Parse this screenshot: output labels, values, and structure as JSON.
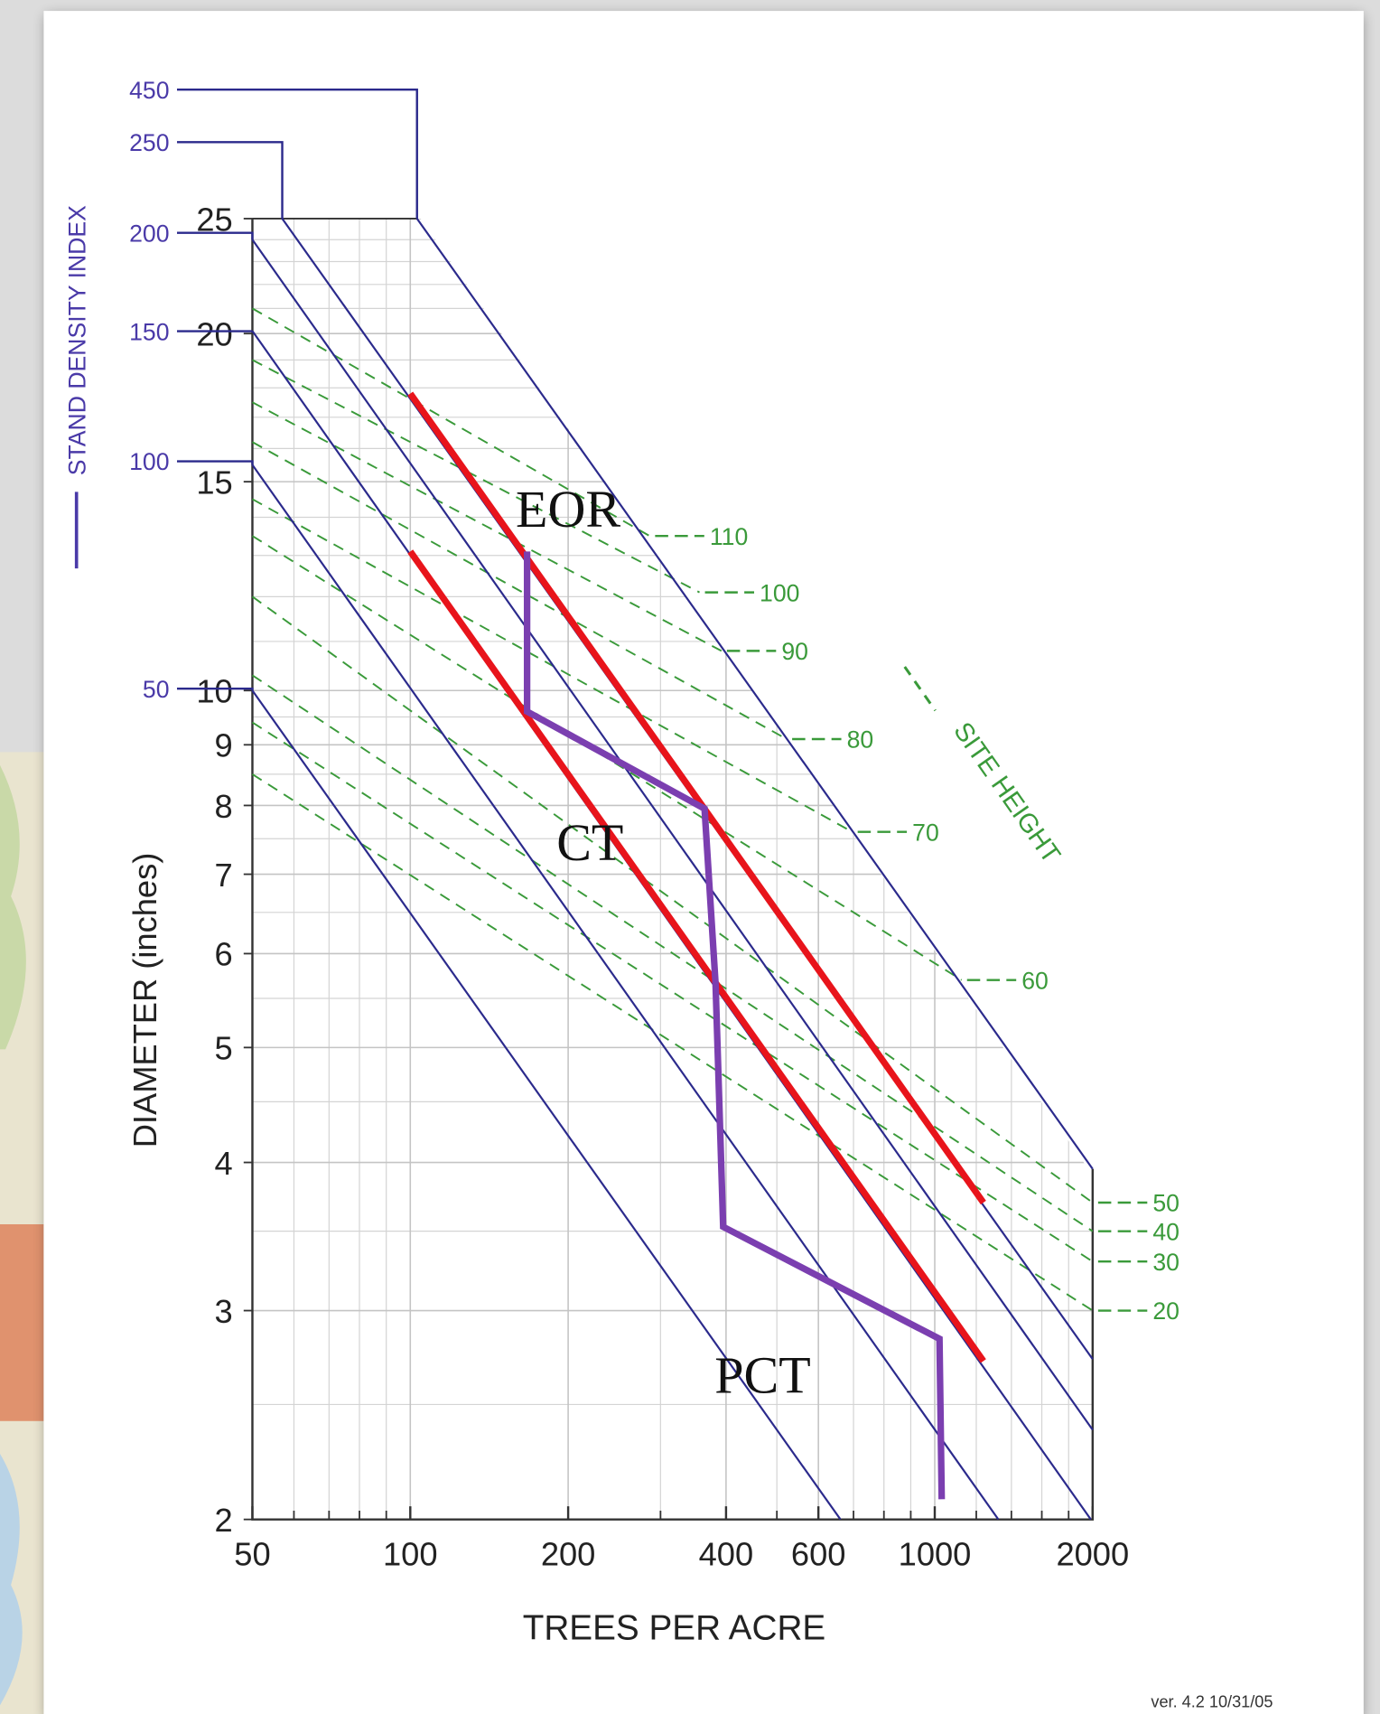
{
  "chart_data": {
    "type": "line",
    "x_label": "TREES PER ACRE",
    "y_label": "DIAMETER (inches)",
    "sdi_label": "STAND DENSITY INDEX",
    "site_label": "SITE HEIGHT",
    "version": "ver. 4.2  10/31/05",
    "log_x": true,
    "log_y": true,
    "grid": true,
    "xlim": [
      50,
      2000
    ],
    "ylim": [
      2,
      25
    ],
    "xticks": [
      50,
      100,
      200,
      400,
      600,
      1000,
      2000
    ],
    "yticks": [
      2,
      3,
      4,
      5,
      6,
      7,
      8,
      9,
      10,
      15,
      20,
      25
    ],
    "xgrid": [
      60,
      70,
      80,
      90,
      300,
      500,
      700,
      800,
      900,
      1200,
      1400,
      1600,
      1800
    ],
    "ygrid": [
      2.5,
      3.5,
      4.5,
      5.5,
      6.5,
      7.5,
      8.5,
      9.5,
      11,
      12,
      13,
      14,
      16,
      17,
      18,
      19,
      21,
      22,
      23,
      24
    ],
    "series": [
      {
        "name": "450",
        "color": "#2b2a8c",
        "x": [
          103,
          2000
        ],
        "values": [
          25,
          3.95
        ]
      },
      {
        "name": "250",
        "color": "#2b2a8c",
        "x": [
          57,
          2000
        ],
        "values": [
          25,
          2.73
        ]
      },
      {
        "name": "200",
        "color": "#2b2a8c",
        "x": [
          50,
          2000
        ],
        "values": [
          24,
          2.38
        ]
      },
      {
        "name": "150",
        "color": "#2b2a8c",
        "x": [
          50,
          1984
        ],
        "values": [
          20.1,
          2
        ]
      },
      {
        "name": "100",
        "color": "#2b2a8c",
        "x": [
          50,
          1322
        ],
        "values": [
          15.5,
          2
        ]
      },
      {
        "name": "50",
        "color": "#2b2a8c",
        "x": [
          50,
          661
        ],
        "values": [
          10,
          2
        ]
      }
    ],
    "site_height_series": [
      {
        "name": "110",
        "color": "#3a9a3a",
        "x": [
          50,
          286
        ],
        "values": [
          21.0,
          13.5
        ]
      },
      {
        "name": "100",
        "color": "#3a9a3a",
        "x": [
          50,
          356
        ],
        "values": [
          19.0,
          12.1
        ]
      },
      {
        "name": "90",
        "color": "#3a9a3a",
        "x": [
          50,
          392
        ],
        "values": [
          17.5,
          10.8
        ]
      },
      {
        "name": "80",
        "color": "#3a9a3a",
        "x": [
          50,
          522
        ],
        "values": [
          16.2,
          9.1
        ]
      },
      {
        "name": "70",
        "color": "#3a9a3a",
        "x": [
          50,
          696
        ],
        "values": [
          14.5,
          7.6
        ]
      },
      {
        "name": "60",
        "color": "#3a9a3a",
        "x": [
          50,
          1125
        ],
        "values": [
          13.5,
          5.7
        ]
      },
      {
        "name": "50",
        "color": "#3a9a3a",
        "x": [
          50,
          2000
        ],
        "values": [
          12.0,
          3.7
        ]
      },
      {
        "name": "40",
        "color": "#3a9a3a",
        "x": [
          50,
          2000
        ],
        "values": [
          10.3,
          3.5
        ]
      },
      {
        "name": "30",
        "color": "#3a9a3a",
        "x": [
          50,
          2000
        ],
        "values": [
          9.4,
          3.3
        ]
      },
      {
        "name": "20",
        "color": "#3a9a3a",
        "x": [
          50,
          2000
        ],
        "values": [
          8.5,
          3.0
        ]
      }
    ],
    "limit_series": [
      {
        "color": "#e8141b",
        "x": [
          100,
          1238
        ],
        "values": [
          17.8,
          3.7
        ]
      },
      {
        "color": "#e8141b",
        "x": [
          100,
          1238
        ],
        "values": [
          13.1,
          2.72
        ]
      }
    ],
    "path_series": [
      {
        "color": "#7b3fb0",
        "x": [
          167,
          167,
          364,
          382,
          395,
          1021,
          1031
        ],
        "values": [
          13.1,
          9.6,
          7.95,
          5.66,
          3.53,
          2.84,
          2.08
        ]
      }
    ],
    "annotations": [
      "EOR",
      "CT",
      "PCT"
    ]
  }
}
